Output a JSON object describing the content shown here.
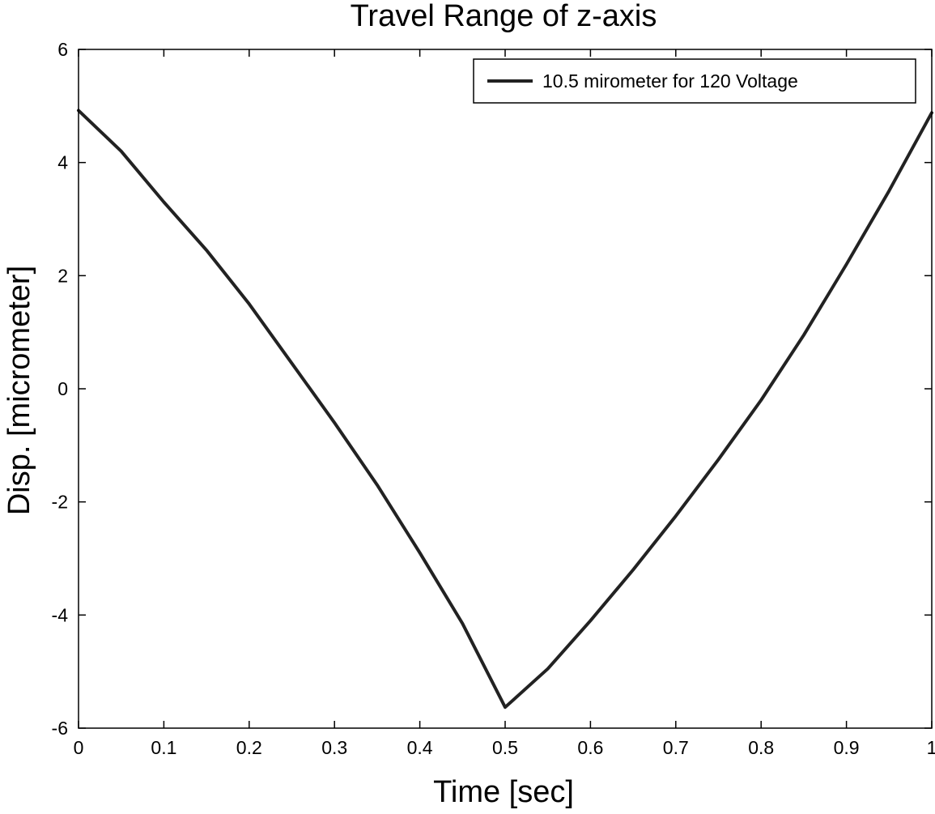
{
  "chart_data": {
    "type": "line",
    "title": "Travel Range of z-axis",
    "xlabel": "Time [sec]",
    "ylabel": "Disp. [micrometer]",
    "xlim": [
      0,
      1
    ],
    "ylim": [
      -6,
      6
    ],
    "x_ticks": [
      "0",
      "0.1",
      "0.2",
      "0.3",
      "0.4",
      "0.5",
      "0.6",
      "0.7",
      "0.8",
      "0.9",
      "1"
    ],
    "y_ticks": [
      "-6",
      "-4",
      "-2",
      "0",
      "2",
      "4",
      "6"
    ],
    "grid": false,
    "legend_position": "top-right",
    "series": [
      {
        "name": "10.5 mirometer for 120 Voltage",
        "color": "#222222",
        "x": [
          0,
          0.05,
          0.1,
          0.15,
          0.2,
          0.25,
          0.3,
          0.35,
          0.4,
          0.45,
          0.5,
          0.55,
          0.6,
          0.65,
          0.7,
          0.75,
          0.8,
          0.85,
          0.9,
          0.95,
          1.0
        ],
        "y": [
          4.92,
          4.2,
          3.3,
          2.45,
          1.5,
          0.45,
          -0.6,
          -1.7,
          -2.9,
          -4.15,
          -5.63,
          -4.95,
          -4.1,
          -3.2,
          -2.25,
          -1.25,
          -0.2,
          0.95,
          2.2,
          3.5,
          4.88
        ]
      }
    ]
  }
}
